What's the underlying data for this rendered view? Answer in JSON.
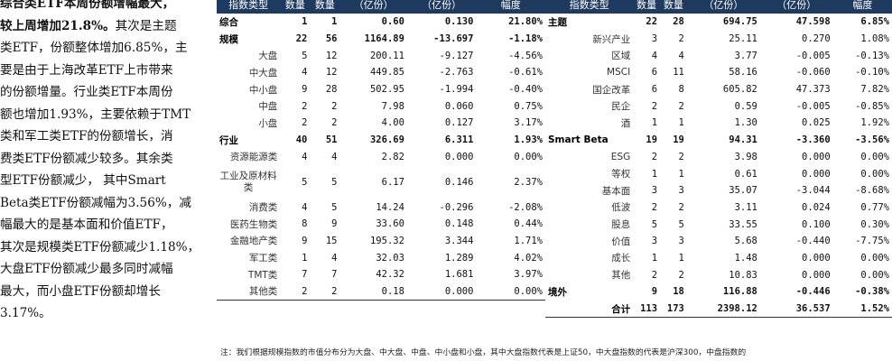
{
  "left_text": {
    "lines": [
      {
        "text": "综合类ETF本周份额增幅最大，",
        "bold": true
      },
      {
        "text": "较上周增加21.8%。其次是主题",
        "bold_prefix": "较上周增加21.8%。",
        "rest": "其次是主题"
      },
      {
        "text": "类ETF，份额整体增加6.85%，主"
      },
      {
        "text": "要是由于上海改革ETF上市带来"
      },
      {
        "text": "的份额增量。行业类ETF本周份"
      },
      {
        "text": "额也增加1.93%，主要依赖于TMT"
      },
      {
        "text": "类和军工类ETF的份额增长，消"
      },
      {
        "text": "费类ETF份额减少较多。其余类"
      },
      {
        "text": "型ETF份额减少， 其中Smart"
      },
      {
        "text": "Beta类ETF份额减幅为3.56%，减"
      },
      {
        "text": "幅最大的是基本面和价值ETF，"
      },
      {
        "text": "其次是规模类ETF份额减少1.18%，"
      },
      {
        "text": "大盘ETF份额减少最多同时减幅"
      },
      {
        "text": "最大，而小盘ETF份额却增长"
      },
      {
        "text": "3.17%。"
      }
    ]
  },
  "table_left": {
    "headers": [
      "指数类型",
      "数量",
      "数量",
      "（亿份）",
      "（亿份）",
      "幅度"
    ],
    "rows": [
      {
        "name": "综合",
        "type": "group",
        "c1": "1",
        "c2": "1",
        "c3": "0.60",
        "c4": "0.130",
        "c5": "21.80%"
      },
      {
        "name": "规模",
        "type": "group",
        "c1": "22",
        "c2": "56",
        "c3": "1164.89",
        "c4": "-13.697",
        "c5": "-1.18%"
      },
      {
        "name": "大盘",
        "type": "sub",
        "c1": "5",
        "c2": "12",
        "c3": "200.11",
        "c4": "-9.127",
        "c5": "-4.56%"
      },
      {
        "name": "中大盘",
        "type": "sub",
        "c1": "4",
        "c2": "12",
        "c3": "449.85",
        "c4": "-2.763",
        "c5": "-0.61%"
      },
      {
        "name": "中小盘",
        "type": "sub",
        "c1": "9",
        "c2": "28",
        "c3": "502.95",
        "c4": "-1.994",
        "c5": "-0.40%"
      },
      {
        "name": "中盘",
        "type": "sub",
        "c1": "2",
        "c2": "2",
        "c3": "7.98",
        "c4": "0.060",
        "c5": "0.75%"
      },
      {
        "name": "小盘",
        "type": "sub",
        "c1": "2",
        "c2": "2",
        "c3": "4.00",
        "c4": "0.127",
        "c5": "3.17%"
      },
      {
        "name": "行业",
        "type": "group",
        "c1": "40",
        "c2": "51",
        "c3": "326.69",
        "c4": "6.311",
        "c5": "1.93%"
      },
      {
        "name": "资源能源类",
        "type": "sub",
        "c1": "4",
        "c2": "4",
        "c3": "2.82",
        "c4": "0.000",
        "c5": "0.00%"
      },
      {
        "name": "工业及原材料类",
        "type": "sub2",
        "c1": "5",
        "c2": "5",
        "c3": "6.17",
        "c4": "0.146",
        "c5": "2.37%"
      },
      {
        "name": "消费类",
        "type": "sub",
        "c1": "4",
        "c2": "5",
        "c3": "14.24",
        "c4": "-0.296",
        "c5": "-2.08%"
      },
      {
        "name": "医药生物类",
        "type": "sub",
        "c1": "8",
        "c2": "9",
        "c3": "33.60",
        "c4": "0.148",
        "c5": "0.44%"
      },
      {
        "name": "金融地产类",
        "type": "sub",
        "c1": "9",
        "c2": "15",
        "c3": "195.32",
        "c4": "3.344",
        "c5": "1.71%"
      },
      {
        "name": "军工类",
        "type": "sub",
        "c1": "1",
        "c2": "4",
        "c3": "32.03",
        "c4": "1.289",
        "c5": "4.02%"
      },
      {
        "name": "TMT类",
        "type": "sub",
        "c1": "7",
        "c2": "7",
        "c3": "42.32",
        "c4": "1.681",
        "c5": "3.97%"
      },
      {
        "name": "其他类",
        "type": "sub",
        "c1": "2",
        "c2": "2",
        "c3": "0.18",
        "c4": "0.000",
        "c5": "0.00%"
      }
    ]
  },
  "table_right": {
    "headers": [
      "指数类型",
      "数量",
      "数量",
      "（亿份）",
      "（亿份）",
      "幅度"
    ],
    "rows": [
      {
        "name": "主题",
        "type": "group",
        "c1": "22",
        "c2": "28",
        "c3": "694.75",
        "c4": "47.598",
        "c5": "6.85%"
      },
      {
        "name": "新兴产业",
        "type": "sub",
        "c1": "3",
        "c2": "2",
        "c3": "25.11",
        "c4": "0.270",
        "c5": "1.08%"
      },
      {
        "name": "区域",
        "type": "sub",
        "c1": "4",
        "c2": "4",
        "c3": "3.77",
        "c4": "-0.005",
        "c5": "-0.13%"
      },
      {
        "name": "MSCI",
        "type": "sub",
        "c1": "6",
        "c2": "11",
        "c3": "58.16",
        "c4": "-0.060",
        "c5": "-0.10%"
      },
      {
        "name": "国企改革",
        "type": "sub",
        "c1": "6",
        "c2": "8",
        "c3": "605.82",
        "c4": "47.373",
        "c5": "7.82%"
      },
      {
        "name": "民企",
        "type": "sub",
        "c1": "2",
        "c2": "2",
        "c3": "0.59",
        "c4": "-0.005",
        "c5": "-0.85%"
      },
      {
        "name": "酒",
        "type": "sub",
        "c1": "1",
        "c2": "1",
        "c3": "1.30",
        "c4": "0.025",
        "c5": "1.92%"
      },
      {
        "name": "Smart Beta",
        "type": "group",
        "c1": "19",
        "c2": "19",
        "c3": "94.31",
        "c4": "-3.360",
        "c5": "-3.56%"
      },
      {
        "name": "ESG",
        "type": "sub",
        "c1": "2",
        "c2": "2",
        "c3": "3.98",
        "c4": "0.000",
        "c5": "0.00%"
      },
      {
        "name": "等权",
        "type": "sub",
        "c1": "1",
        "c2": "1",
        "c3": "0.61",
        "c4": "0.000",
        "c5": "0.00%"
      },
      {
        "name": "基本面",
        "type": "sub",
        "c1": "3",
        "c2": "3",
        "c3": "35.07",
        "c4": "-3.044",
        "c5": "-8.68%"
      },
      {
        "name": "低波",
        "type": "sub",
        "c1": "2",
        "c2": "2",
        "c3": "3.11",
        "c4": "0.024",
        "c5": "0.77%"
      },
      {
        "name": "股息",
        "type": "sub",
        "c1": "5",
        "c2": "5",
        "c3": "33.55",
        "c4": "0.100",
        "c5": "0.30%"
      },
      {
        "name": "价值",
        "type": "sub",
        "c1": "3",
        "c2": "3",
        "c3": "5.68",
        "c4": "-0.440",
        "c5": "-7.75%"
      },
      {
        "name": "成长",
        "type": "sub",
        "c1": "1",
        "c2": "1",
        "c3": "1.48",
        "c4": "0.000",
        "c5": "0.00%"
      },
      {
        "name": "其他",
        "type": "sub",
        "c1": "2",
        "c2": "2",
        "c3": "10.83",
        "c4": "0.000",
        "c5": "0.00%"
      },
      {
        "name": "境外",
        "type": "group",
        "c1": "9",
        "c2": "18",
        "c3": "116.88",
        "c4": "-0.446",
        "c5": "-0.38%"
      },
      {
        "name": "合计",
        "type": "total",
        "c1": "113",
        "c2": "173",
        "c3": "2398.12",
        "c4": "36.537",
        "c5": "1.52%"
      }
    ]
  },
  "note": "注：我们根据规模指数的市值分布分为大盘、中大盘、中盘、中小盘和小盘，其中大盘指数代表是上证50，中大盘指数的代表是沪深300，中盘指数的"
}
